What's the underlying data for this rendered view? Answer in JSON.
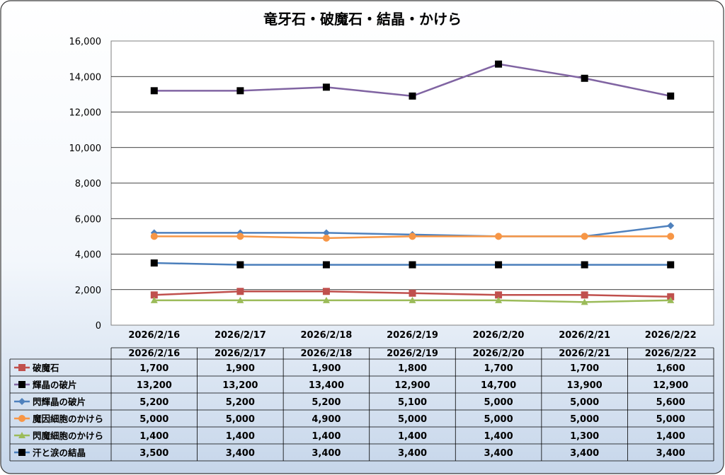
{
  "chart_data": {
    "type": "line",
    "title": "竜牙石・破魔石・結晶・かけら",
    "categories": [
      "2026/2/16",
      "2026/2/17",
      "2026/2/18",
      "2026/2/19",
      "2026/2/20",
      "2026/2/21",
      "2026/2/22"
    ],
    "ylim": [
      0,
      16000
    ],
    "yticks": [
      "0",
      "2,000",
      "4,000",
      "6,000",
      "8,000",
      "10,000",
      "12,000",
      "14,000",
      "16,000"
    ],
    "ytick_values": [
      0,
      2000,
      4000,
      6000,
      8000,
      10000,
      12000,
      14000,
      16000
    ],
    "grid": true,
    "legend": "data-table",
    "series": [
      {
        "name": "破魔石",
        "color": "#c0504d",
        "marker": "square",
        "values": [
          1700,
          1900,
          1900,
          1800,
          1700,
          1700,
          1600
        ],
        "labels": [
          "1,700",
          "1,900",
          "1,900",
          "1,800",
          "1,700",
          "1,700",
          "1,600"
        ]
      },
      {
        "name": "輝晶の破片",
        "color": "#8064a2",
        "marker": "square-black",
        "values": [
          13200,
          13200,
          13400,
          12900,
          14700,
          13900,
          12900
        ],
        "labels": [
          "13,200",
          "13,200",
          "13,400",
          "12,900",
          "14,700",
          "13,900",
          "12,900"
        ]
      },
      {
        "name": "閃輝晶の破片",
        "color": "#4f81bd",
        "marker": "diamond",
        "values": [
          5200,
          5200,
          5200,
          5100,
          5000,
          5000,
          5600
        ],
        "labels": [
          "5,200",
          "5,200",
          "5,200",
          "5,100",
          "5,000",
          "5,000",
          "5,600"
        ]
      },
      {
        "name": "魔因細胞のかけら",
        "color": "#f79646",
        "marker": "circle",
        "values": [
          5000,
          5000,
          4900,
          5000,
          5000,
          5000,
          5000
        ],
        "labels": [
          "5,000",
          "5,000",
          "4,900",
          "5,000",
          "5,000",
          "5,000",
          "5,000"
        ]
      },
      {
        "name": "閃魔細胞のかけら",
        "color": "#9bbb59",
        "marker": "triangle",
        "values": [
          1400,
          1400,
          1400,
          1400,
          1400,
          1300,
          1400
        ],
        "labels": [
          "1,400",
          "1,400",
          "1,400",
          "1,400",
          "1,400",
          "1,300",
          "1,400"
        ]
      },
      {
        "name": "汗と涙の結晶",
        "color": "#4a7ebb",
        "marker": "square-black",
        "values": [
          3500,
          3400,
          3400,
          3400,
          3400,
          3400,
          3400
        ],
        "labels": [
          "3,500",
          "3,400",
          "3,400",
          "3,400",
          "3,400",
          "3,400",
          "3,400"
        ]
      }
    ]
  }
}
